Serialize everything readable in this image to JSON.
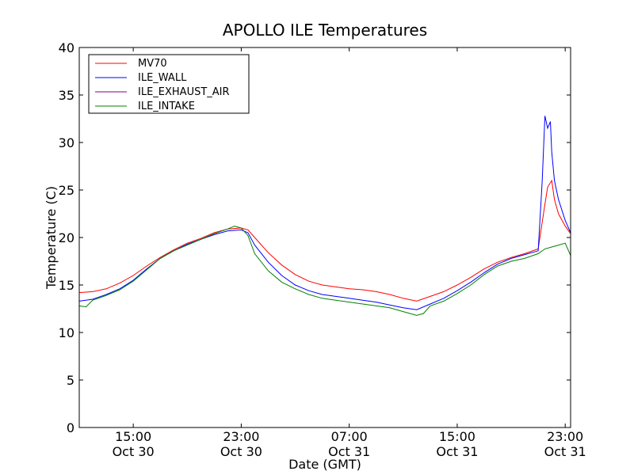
{
  "chart_data": {
    "type": "line",
    "title": "APOLLO ILE Temperatures",
    "xlabel": "Date (GMT)",
    "ylabel": "Temperature (C)",
    "x_unit": "hours from Oct 30 11:00 GMT",
    "xlim": [
      0,
      36.4
    ],
    "ylim": [
      0,
      40
    ],
    "yticks": [
      0,
      5,
      10,
      15,
      20,
      25,
      30,
      35,
      40
    ],
    "xticks": [
      {
        "x": 4,
        "time": "15:00",
        "date": "Oct 30"
      },
      {
        "x": 12,
        "time": "23:00",
        "date": "Oct 30"
      },
      {
        "x": 20,
        "time": "07:00",
        "date": "Oct 31"
      },
      {
        "x": 28,
        "time": "15:00",
        "date": "Oct 31"
      },
      {
        "x": 36,
        "time": "23:00",
        "date": "Oct 31"
      }
    ],
    "legend_position": "top-left",
    "grid": false,
    "series": [
      {
        "name": "MV70",
        "color": "#ff0000",
        "x": [
          0,
          1,
          2,
          3,
          4,
          5,
          6,
          7,
          8,
          9,
          10,
          11,
          12,
          12.5,
          13,
          14,
          15,
          16,
          17,
          18,
          19,
          20,
          21,
          22,
          23,
          24,
          25,
          26,
          27,
          28,
          29,
          30,
          31,
          32,
          33,
          34,
          34.5,
          34.7,
          35,
          35.2,
          35.5,
          36,
          36.4
        ],
        "y": [
          14.2,
          14.3,
          14.6,
          15.2,
          16.0,
          17.0,
          17.9,
          18.7,
          19.4,
          19.9,
          20.5,
          20.9,
          21.0,
          20.8,
          20.0,
          18.4,
          17.1,
          16.1,
          15.4,
          15.0,
          14.8,
          14.6,
          14.5,
          14.3,
          14.0,
          13.6,
          13.3,
          13.8,
          14.3,
          15.0,
          15.8,
          16.7,
          17.4,
          17.9,
          18.3,
          18.8,
          23.5,
          25.3,
          26.0,
          24.0,
          22.5,
          21.2,
          20.4
        ]
      },
      {
        "name": "ILE_WALL",
        "color": "#0000ff",
        "x": [
          0,
          1,
          2,
          3,
          4,
          5,
          6,
          7,
          8,
          9,
          10,
          11,
          12,
          12.5,
          13,
          14,
          15,
          16,
          17,
          18,
          19,
          20,
          21,
          22,
          23,
          24,
          25,
          26,
          27,
          28,
          29,
          30,
          31,
          32,
          33,
          34,
          34.3,
          34.5,
          34.7,
          34.9,
          35,
          35.2,
          35.5,
          36,
          36.4
        ],
        "y": [
          13.3,
          13.5,
          14.0,
          14.6,
          15.5,
          16.7,
          17.8,
          18.6,
          19.3,
          19.8,
          20.3,
          20.7,
          20.8,
          20.5,
          19.2,
          17.4,
          16.0,
          15.0,
          14.4,
          14.0,
          13.8,
          13.6,
          13.4,
          13.2,
          12.9,
          12.6,
          12.4,
          13.0,
          13.6,
          14.4,
          15.3,
          16.3,
          17.2,
          17.8,
          18.2,
          18.6,
          26.0,
          32.8,
          31.5,
          32.2,
          29.0,
          26.0,
          24.0,
          21.8,
          20.5
        ]
      },
      {
        "name": "ILE_EXHAUST_AIR",
        "color": "#800080",
        "x": [],
        "y": []
      },
      {
        "name": "ILE_INTAKE",
        "color": "#008000",
        "x": [
          0,
          0.5,
          1,
          2,
          3,
          4,
          5,
          6,
          7,
          8,
          9,
          10,
          11,
          11.5,
          12,
          12.5,
          13,
          14,
          15,
          16,
          17,
          18,
          19,
          20,
          21,
          22,
          23,
          24,
          25,
          25.5,
          26,
          27,
          28,
          29,
          30,
          31,
          32,
          33,
          34,
          34.5,
          35,
          35.5,
          36,
          36.4
        ],
        "y": [
          12.8,
          12.7,
          13.4,
          13.9,
          14.5,
          15.4,
          16.6,
          17.8,
          18.6,
          19.2,
          19.8,
          20.4,
          20.9,
          21.2,
          21.0,
          20.2,
          18.3,
          16.5,
          15.3,
          14.6,
          14.0,
          13.6,
          13.4,
          13.2,
          13.0,
          12.8,
          12.6,
          12.2,
          11.8,
          12.0,
          12.8,
          13.3,
          14.1,
          15.0,
          16.1,
          17.0,
          17.5,
          17.8,
          18.3,
          18.8,
          19.0,
          19.2,
          19.4,
          18.1
        ]
      }
    ]
  }
}
